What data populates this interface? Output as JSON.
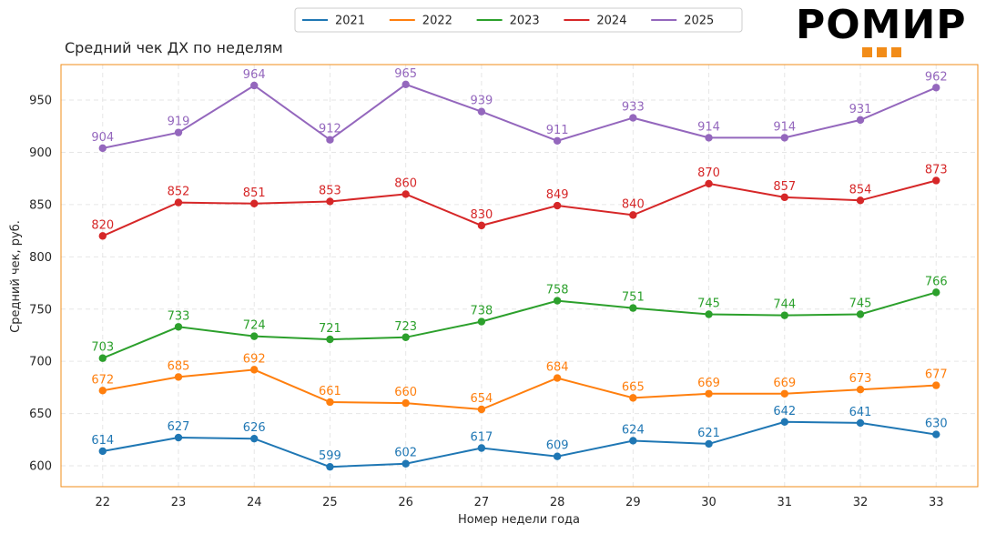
{
  "chart_data": {
    "type": "line",
    "title": "Средний чек ДХ по неделям",
    "xlabel": "Номер недели года",
    "ylabel": "Средний чек, руб.",
    "x": [
      22,
      23,
      24,
      25,
      26,
      27,
      28,
      29,
      30,
      31,
      32,
      33
    ],
    "xlim": [
      21.45,
      33.55
    ],
    "ylim": [
      580,
      984
    ],
    "yticks": [
      600,
      650,
      700,
      750,
      800,
      850,
      900,
      950
    ],
    "grid": true,
    "legend_position": "top",
    "series": [
      {
        "name": "2021",
        "color": "#1f77b4",
        "values": [
          614,
          627,
          626,
          599,
          602,
          617,
          609,
          624,
          621,
          642,
          641,
          630
        ]
      },
      {
        "name": "2022",
        "color": "#ff7f0e",
        "values": [
          672,
          685,
          692,
          661,
          660,
          654,
          684,
          665,
          669,
          669,
          673,
          677
        ]
      },
      {
        "name": "2023",
        "color": "#2ca02c",
        "values": [
          703,
          733,
          724,
          721,
          723,
          738,
          758,
          751,
          745,
          744,
          745,
          766
        ]
      },
      {
        "name": "2024",
        "color": "#d62728",
        "values": [
          820,
          852,
          851,
          853,
          860,
          830,
          849,
          840,
          870,
          857,
          854,
          873
        ]
      },
      {
        "name": "2025",
        "color": "#9467bd",
        "values": [
          904,
          919,
          964,
          912,
          965,
          939,
          911,
          933,
          914,
          914,
          931,
          962
        ]
      }
    ]
  },
  "logo": {
    "text": "РОМИР"
  },
  "colors": {
    "frame": "#f28c18",
    "grid": "#e6e6e6",
    "text": "#262626"
  }
}
